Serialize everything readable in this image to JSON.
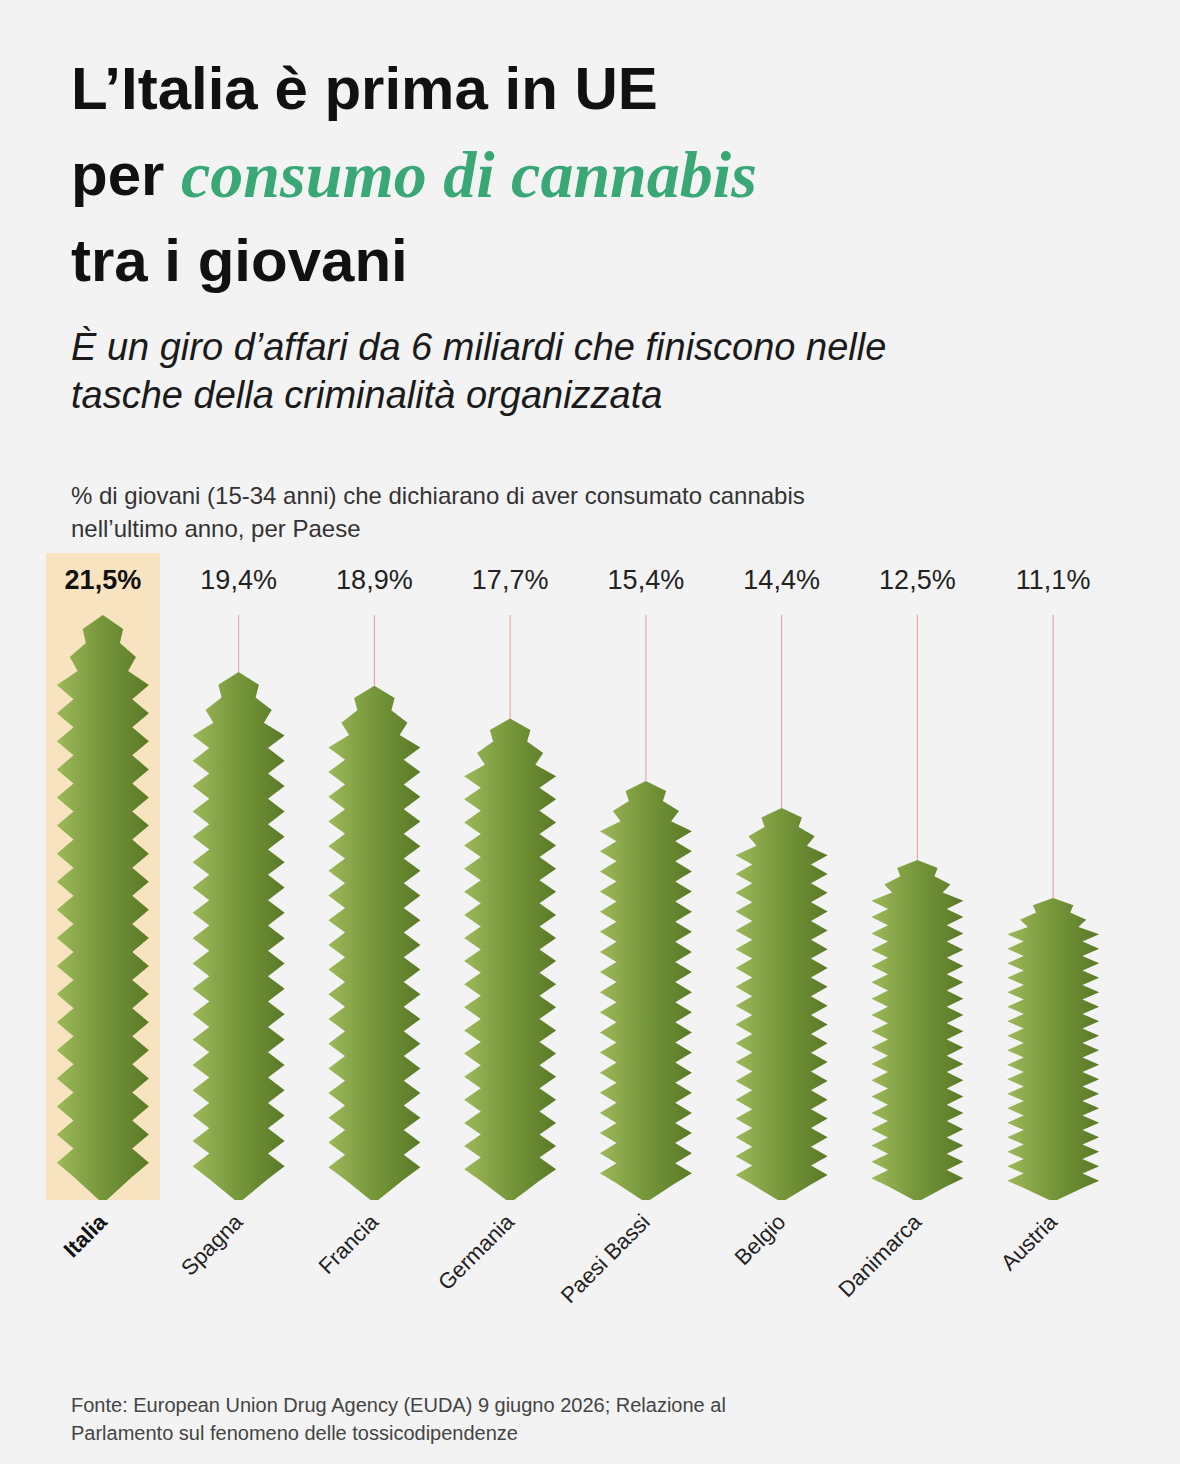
{
  "chart_data": {
    "type": "bar",
    "title_lines": [
      "L’Italia è prima in UE",
      "per consumo di cannabis",
      "tra i giovani"
    ],
    "title_highlight": "consumo di cannabis",
    "subtitle": "È un giro d’affari da 6 miliardi che finiscono nelle tasche della criminalità organizzata",
    "caption": "% di giovani (15-34 anni) che dichiarano di aver consumato cannabis nell’ultimo anno, per Paese",
    "source": "Fonte: European Union Drug Agency (EUDA) 9 giugno 2026; Relazione al Parlamento sul fenomeno delle tossicodipendenze",
    "categories": [
      "Italia",
      "Spagna",
      "Francia",
      "Germania",
      "Paesi Bassi",
      "Belgio",
      "Danimarca",
      "Austria"
    ],
    "values": [
      21.5,
      19.4,
      18.9,
      17.7,
      15.4,
      14.4,
      12.5,
      11.1
    ],
    "value_labels": [
      "21,5%",
      "19,4%",
      "18,9%",
      "17,7%",
      "15,4%",
      "14,4%",
      "12,5%",
      "11,1%"
    ],
    "color": "#76963a",
    "ylim": [
      0,
      21.5
    ],
    "grid": false,
    "data_labels": true,
    "tick_labels": "x"
  }
}
